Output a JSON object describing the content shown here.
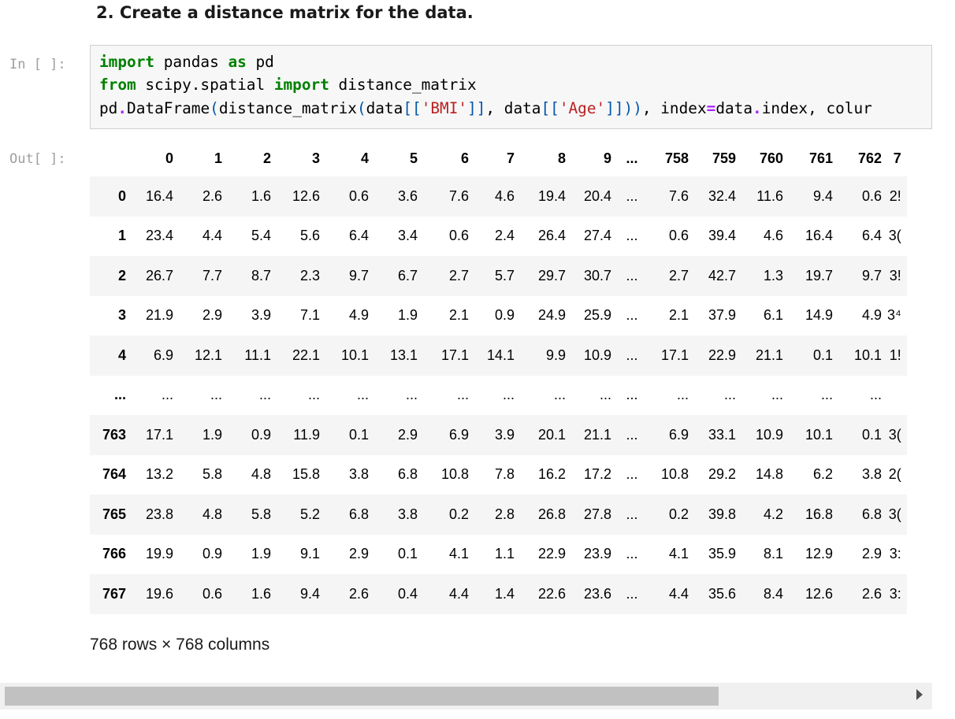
{
  "heading": "2. Create a distance matrix for the data.",
  "input_prompt": "In [ ]:",
  "output_prompt": "Out[ ]:",
  "code_lines": [
    [
      [
        "kw",
        "import"
      ],
      [
        "t",
        " pandas "
      ],
      [
        "kw",
        "as"
      ],
      [
        "t",
        " pd"
      ]
    ],
    [
      [
        "kw",
        "from"
      ],
      [
        "t",
        " scipy.spatial "
      ],
      [
        "kw",
        "import"
      ],
      [
        "t",
        " distance_matrix"
      ]
    ],
    [
      [
        "t",
        "pd"
      ],
      [
        "op",
        "."
      ],
      [
        "t",
        "DataFrame"
      ],
      [
        "par",
        "("
      ],
      [
        "t",
        "distance_matrix"
      ],
      [
        "par",
        "("
      ],
      [
        "t",
        "data"
      ],
      [
        "par",
        "[["
      ],
      [
        "str",
        "'BMI'"
      ],
      [
        "par",
        "]]"
      ],
      [
        "t",
        ", data"
      ],
      [
        "par",
        "[["
      ],
      [
        "str",
        "'Age'"
      ],
      [
        "par",
        "]]))"
      ],
      [
        "t",
        ", index"
      ],
      [
        "op",
        "="
      ],
      [
        "t",
        "data"
      ],
      [
        "op",
        "."
      ],
      [
        "t",
        "index, colur"
      ]
    ]
  ],
  "table": {
    "columns": [
      "0",
      "1",
      "2",
      "3",
      "4",
      "5",
      "6",
      "7",
      "8",
      "9",
      "...",
      "758",
      "759",
      "760",
      "761",
      "762",
      "7"
    ],
    "rows": [
      {
        "index": "0",
        "cells": [
          "16.4",
          "2.6",
          "1.6",
          "12.6",
          "0.6",
          "3.6",
          "7.6",
          "4.6",
          "19.4",
          "20.4",
          "...",
          "7.6",
          "32.4",
          "11.6",
          "9.4",
          "0.6",
          "2!"
        ]
      },
      {
        "index": "1",
        "cells": [
          "23.4",
          "4.4",
          "5.4",
          "5.6",
          "6.4",
          "3.4",
          "0.6",
          "2.4",
          "26.4",
          "27.4",
          "...",
          "0.6",
          "39.4",
          "4.6",
          "16.4",
          "6.4",
          "3("
        ]
      },
      {
        "index": "2",
        "cells": [
          "26.7",
          "7.7",
          "8.7",
          "2.3",
          "9.7",
          "6.7",
          "2.7",
          "5.7",
          "29.7",
          "30.7",
          "...",
          "2.7",
          "42.7",
          "1.3",
          "19.7",
          "9.7",
          "3!"
        ]
      },
      {
        "index": "3",
        "cells": [
          "21.9",
          "2.9",
          "3.9",
          "7.1",
          "4.9",
          "1.9",
          "2.1",
          "0.9",
          "24.9",
          "25.9",
          "...",
          "2.1",
          "37.9",
          "6.1",
          "14.9",
          "4.9",
          "3⁴"
        ]
      },
      {
        "index": "4",
        "cells": [
          "6.9",
          "12.1",
          "11.1",
          "22.1",
          "10.1",
          "13.1",
          "17.1",
          "14.1",
          "9.9",
          "10.9",
          "...",
          "17.1",
          "22.9",
          "21.1",
          "0.1",
          "10.1",
          "1!"
        ]
      },
      {
        "index": "...",
        "cells": [
          "...",
          "...",
          "...",
          "...",
          "...",
          "...",
          "...",
          "...",
          "...",
          "...",
          "...",
          "...",
          "...",
          "...",
          "...",
          "...",
          ""
        ]
      },
      {
        "index": "763",
        "cells": [
          "17.1",
          "1.9",
          "0.9",
          "11.9",
          "0.1",
          "2.9",
          "6.9",
          "3.9",
          "20.1",
          "21.1",
          "...",
          "6.9",
          "33.1",
          "10.9",
          "10.1",
          "0.1",
          "3("
        ]
      },
      {
        "index": "764",
        "cells": [
          "13.2",
          "5.8",
          "4.8",
          "15.8",
          "3.8",
          "6.8",
          "10.8",
          "7.8",
          "16.2",
          "17.2",
          "...",
          "10.8",
          "29.2",
          "14.8",
          "6.2",
          "3.8",
          "2("
        ]
      },
      {
        "index": "765",
        "cells": [
          "23.8",
          "4.8",
          "5.8",
          "5.2",
          "6.8",
          "3.8",
          "0.2",
          "2.8",
          "26.8",
          "27.8",
          "...",
          "0.2",
          "39.8",
          "4.2",
          "16.8",
          "6.8",
          "3("
        ]
      },
      {
        "index": "766",
        "cells": [
          "19.9",
          "0.9",
          "1.9",
          "9.1",
          "2.9",
          "0.1",
          "4.1",
          "1.1",
          "22.9",
          "23.9",
          "...",
          "4.1",
          "35.9",
          "8.1",
          "12.9",
          "2.9",
          "3:"
        ]
      },
      {
        "index": "767",
        "cells": [
          "19.6",
          "0.6",
          "1.6",
          "9.4",
          "2.6",
          "0.4",
          "4.4",
          "1.4",
          "22.6",
          "23.6",
          "...",
          "4.4",
          "35.6",
          "8.4",
          "12.6",
          "2.6",
          "3:"
        ]
      }
    ]
  },
  "shape_text": "768 rows × 768 columns",
  "scrollbar": {
    "right_arrow_icon": "triangle-right-icon"
  }
}
